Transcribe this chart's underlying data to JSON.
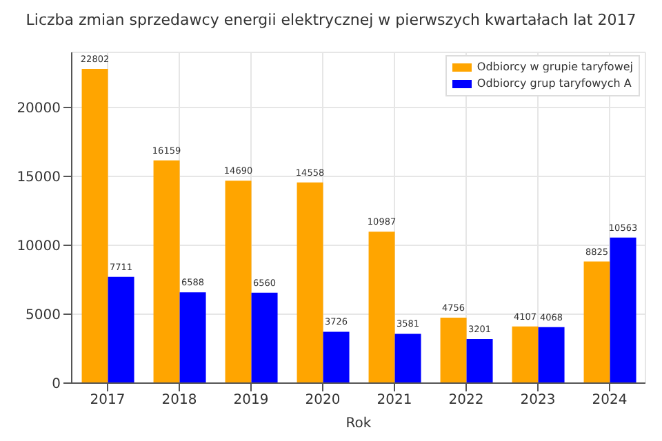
{
  "chart_data": {
    "type": "bar",
    "title": "Liczba zmian sprzedawcy energii elektrycznej w pierwszych kwartałach lat 2017",
    "xlabel": "Rok",
    "categories": [
      "2017",
      "2018",
      "2019",
      "2020",
      "2021",
      "2022",
      "2023",
      "2024"
    ],
    "series": [
      {
        "name": "Odbiorcy w grupie taryfowej",
        "color": "#ffa500",
        "values": [
          22802,
          16159,
          14690,
          14558,
          10987,
          4756,
          4107,
          8825
        ]
      },
      {
        "name": "Odbiorcy grup taryfowych A",
        "color": "#0000ff",
        "values": [
          7711,
          6588,
          6560,
          3726,
          3581,
          3201,
          4068,
          10563
        ]
      }
    ],
    "ylim": [
      0,
      24000
    ],
    "yticks": [
      0,
      5000,
      10000,
      15000,
      20000
    ],
    "grid": true,
    "legend": "top right",
    "data_labels": true
  }
}
